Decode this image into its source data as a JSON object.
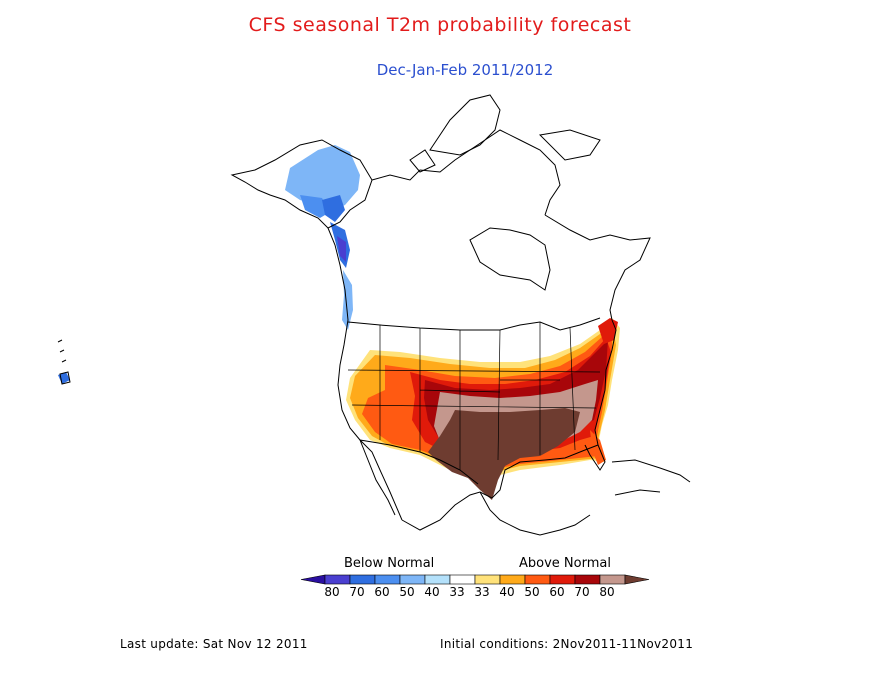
{
  "title": "CFS seasonal T2m probability forecast",
  "subtitle": "Dec-Jan-Feb 2011/2012",
  "legend": {
    "below_label": "Below Normal",
    "above_label": "Above Normal",
    "ticks": [
      "80",
      "70",
      "60",
      "50",
      "40",
      "33",
      "33",
      "40",
      "50",
      "60",
      "70",
      "80"
    ],
    "colors": {
      "below_80": "#2a0fa0",
      "below_70": "#4a3fd0",
      "below_60": "#2f6ee0",
      "below_50": "#4c8ff0",
      "below_40": "#7eb6f7",
      "below_33": "#b4e1fb",
      "neutral": "#ffffff",
      "above_33": "#ffe27a",
      "above_40": "#ffaa1a",
      "above_50": "#ff5a12",
      "above_60": "#e01a0a",
      "above_70": "#a8060a",
      "above_80": "#c4978d",
      "above_max": "#6e3c30"
    }
  },
  "footer": {
    "last_update": "Last update: Sat Nov 12 2011",
    "initial_conditions": "Initial conditions: 2Nov2011-11Nov2011"
  }
}
